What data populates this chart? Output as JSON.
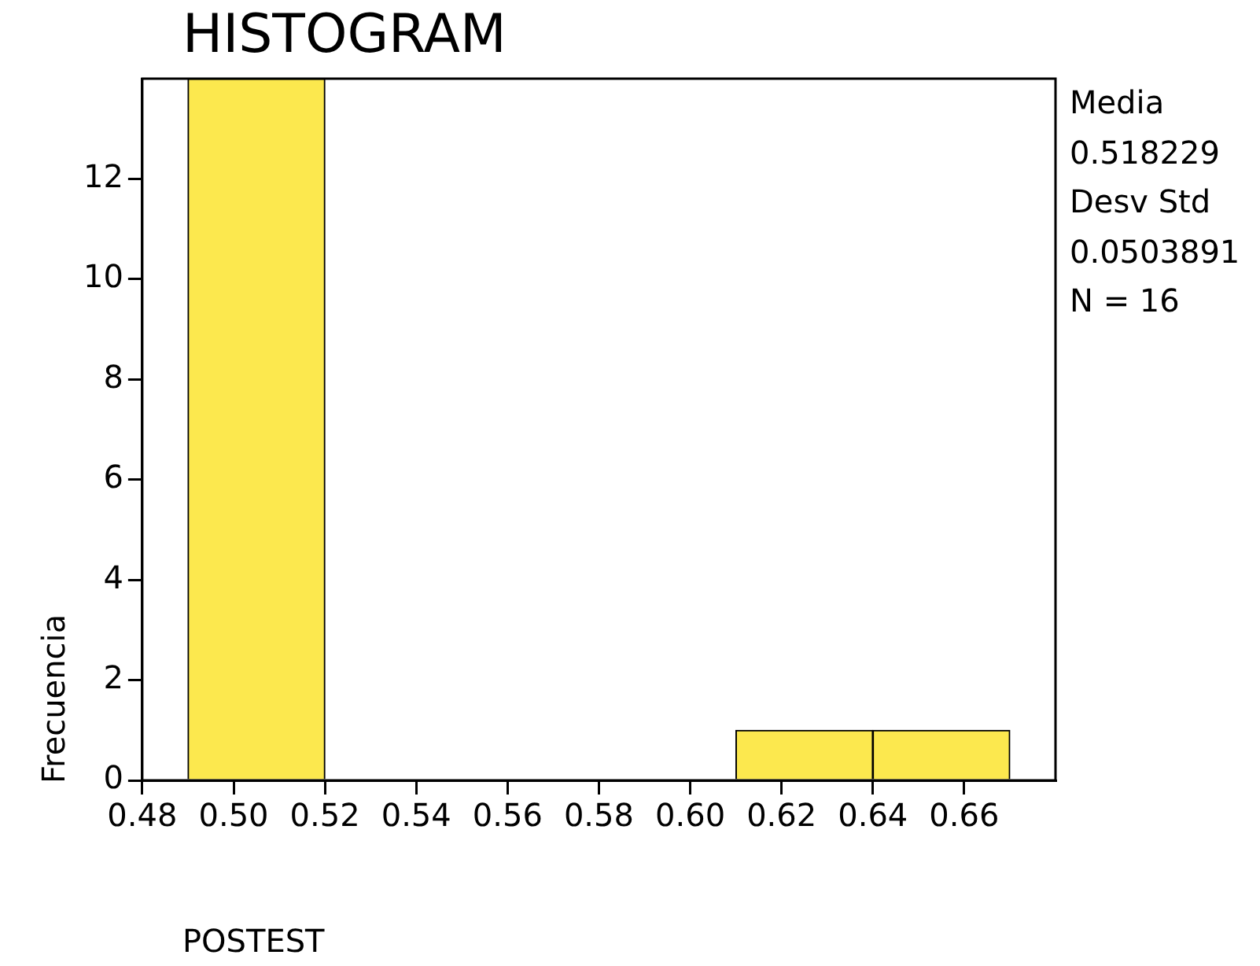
{
  "chart_data": {
    "type": "histogram",
    "title": "HISTOGRAM",
    "xlabel": "POSTEST",
    "ylabel": "Frecuencia",
    "bins": [
      0.49,
      0.52,
      0.55,
      0.58,
      0.61,
      0.64,
      0.67
    ],
    "values": [
      14,
      0,
      0,
      0,
      1,
      1
    ],
    "color": "#fce84e",
    "xlim": [
      0.48,
      0.68
    ],
    "xticks": [
      0.48,
      {
        "value": 0.5,
        "label": "0.50"
      },
      0.52,
      0.54,
      0.56,
      0.58,
      {
        "value": 0.6,
        "label": "0.60"
      },
      0.62,
      0.64,
      0.66
    ],
    "ylim": [
      0,
      14
    ],
    "yticks": [
      0,
      2,
      4,
      6,
      8,
      10,
      12
    ],
    "grid": false,
    "legend": false,
    "annotations": [
      "Media",
      "0.518229",
      "Desv Std",
      "0.0503891",
      "N = 16"
    ]
  }
}
